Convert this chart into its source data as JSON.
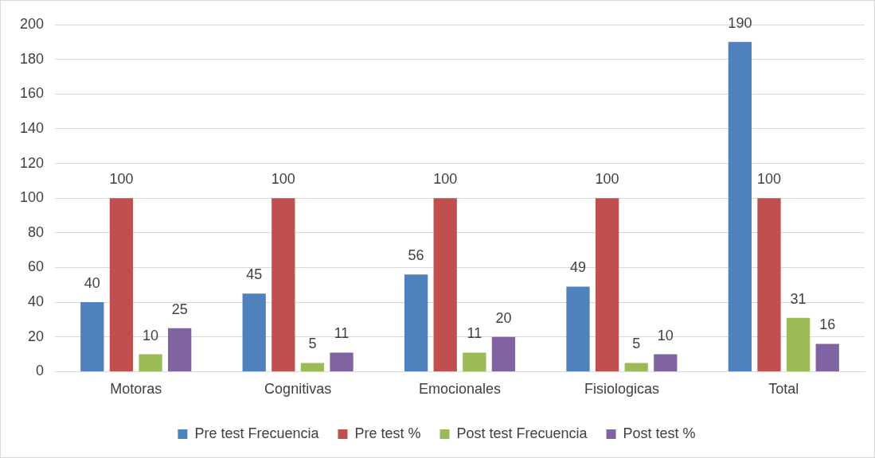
{
  "chart_data": {
    "type": "bar",
    "categories": [
      "Motoras",
      "Cognitivas",
      "Emocionales",
      "Fisiologicas",
      "Total"
    ],
    "series": [
      {
        "name": "Pre test Frecuencia",
        "color": "#4f81bd",
        "values": [
          40,
          45,
          56,
          49,
          190
        ]
      },
      {
        "name": "Pre test %",
        "color": "#c0504d",
        "values": [
          100,
          100,
          100,
          100,
          100
        ]
      },
      {
        "name": "Post test Frecuencia",
        "color": "#9bbb59",
        "values": [
          10,
          5,
          11,
          5,
          31
        ]
      },
      {
        "name": "Post test %",
        "color": "#8064a2",
        "values": [
          25,
          11,
          20,
          10,
          16
        ]
      }
    ],
    "ylim": [
      0,
      200
    ],
    "yticks": [
      0,
      20,
      40,
      60,
      80,
      100,
      120,
      140,
      160,
      180,
      200
    ],
    "grid": "y",
    "legend": "bottom",
    "data_labels": true
  }
}
